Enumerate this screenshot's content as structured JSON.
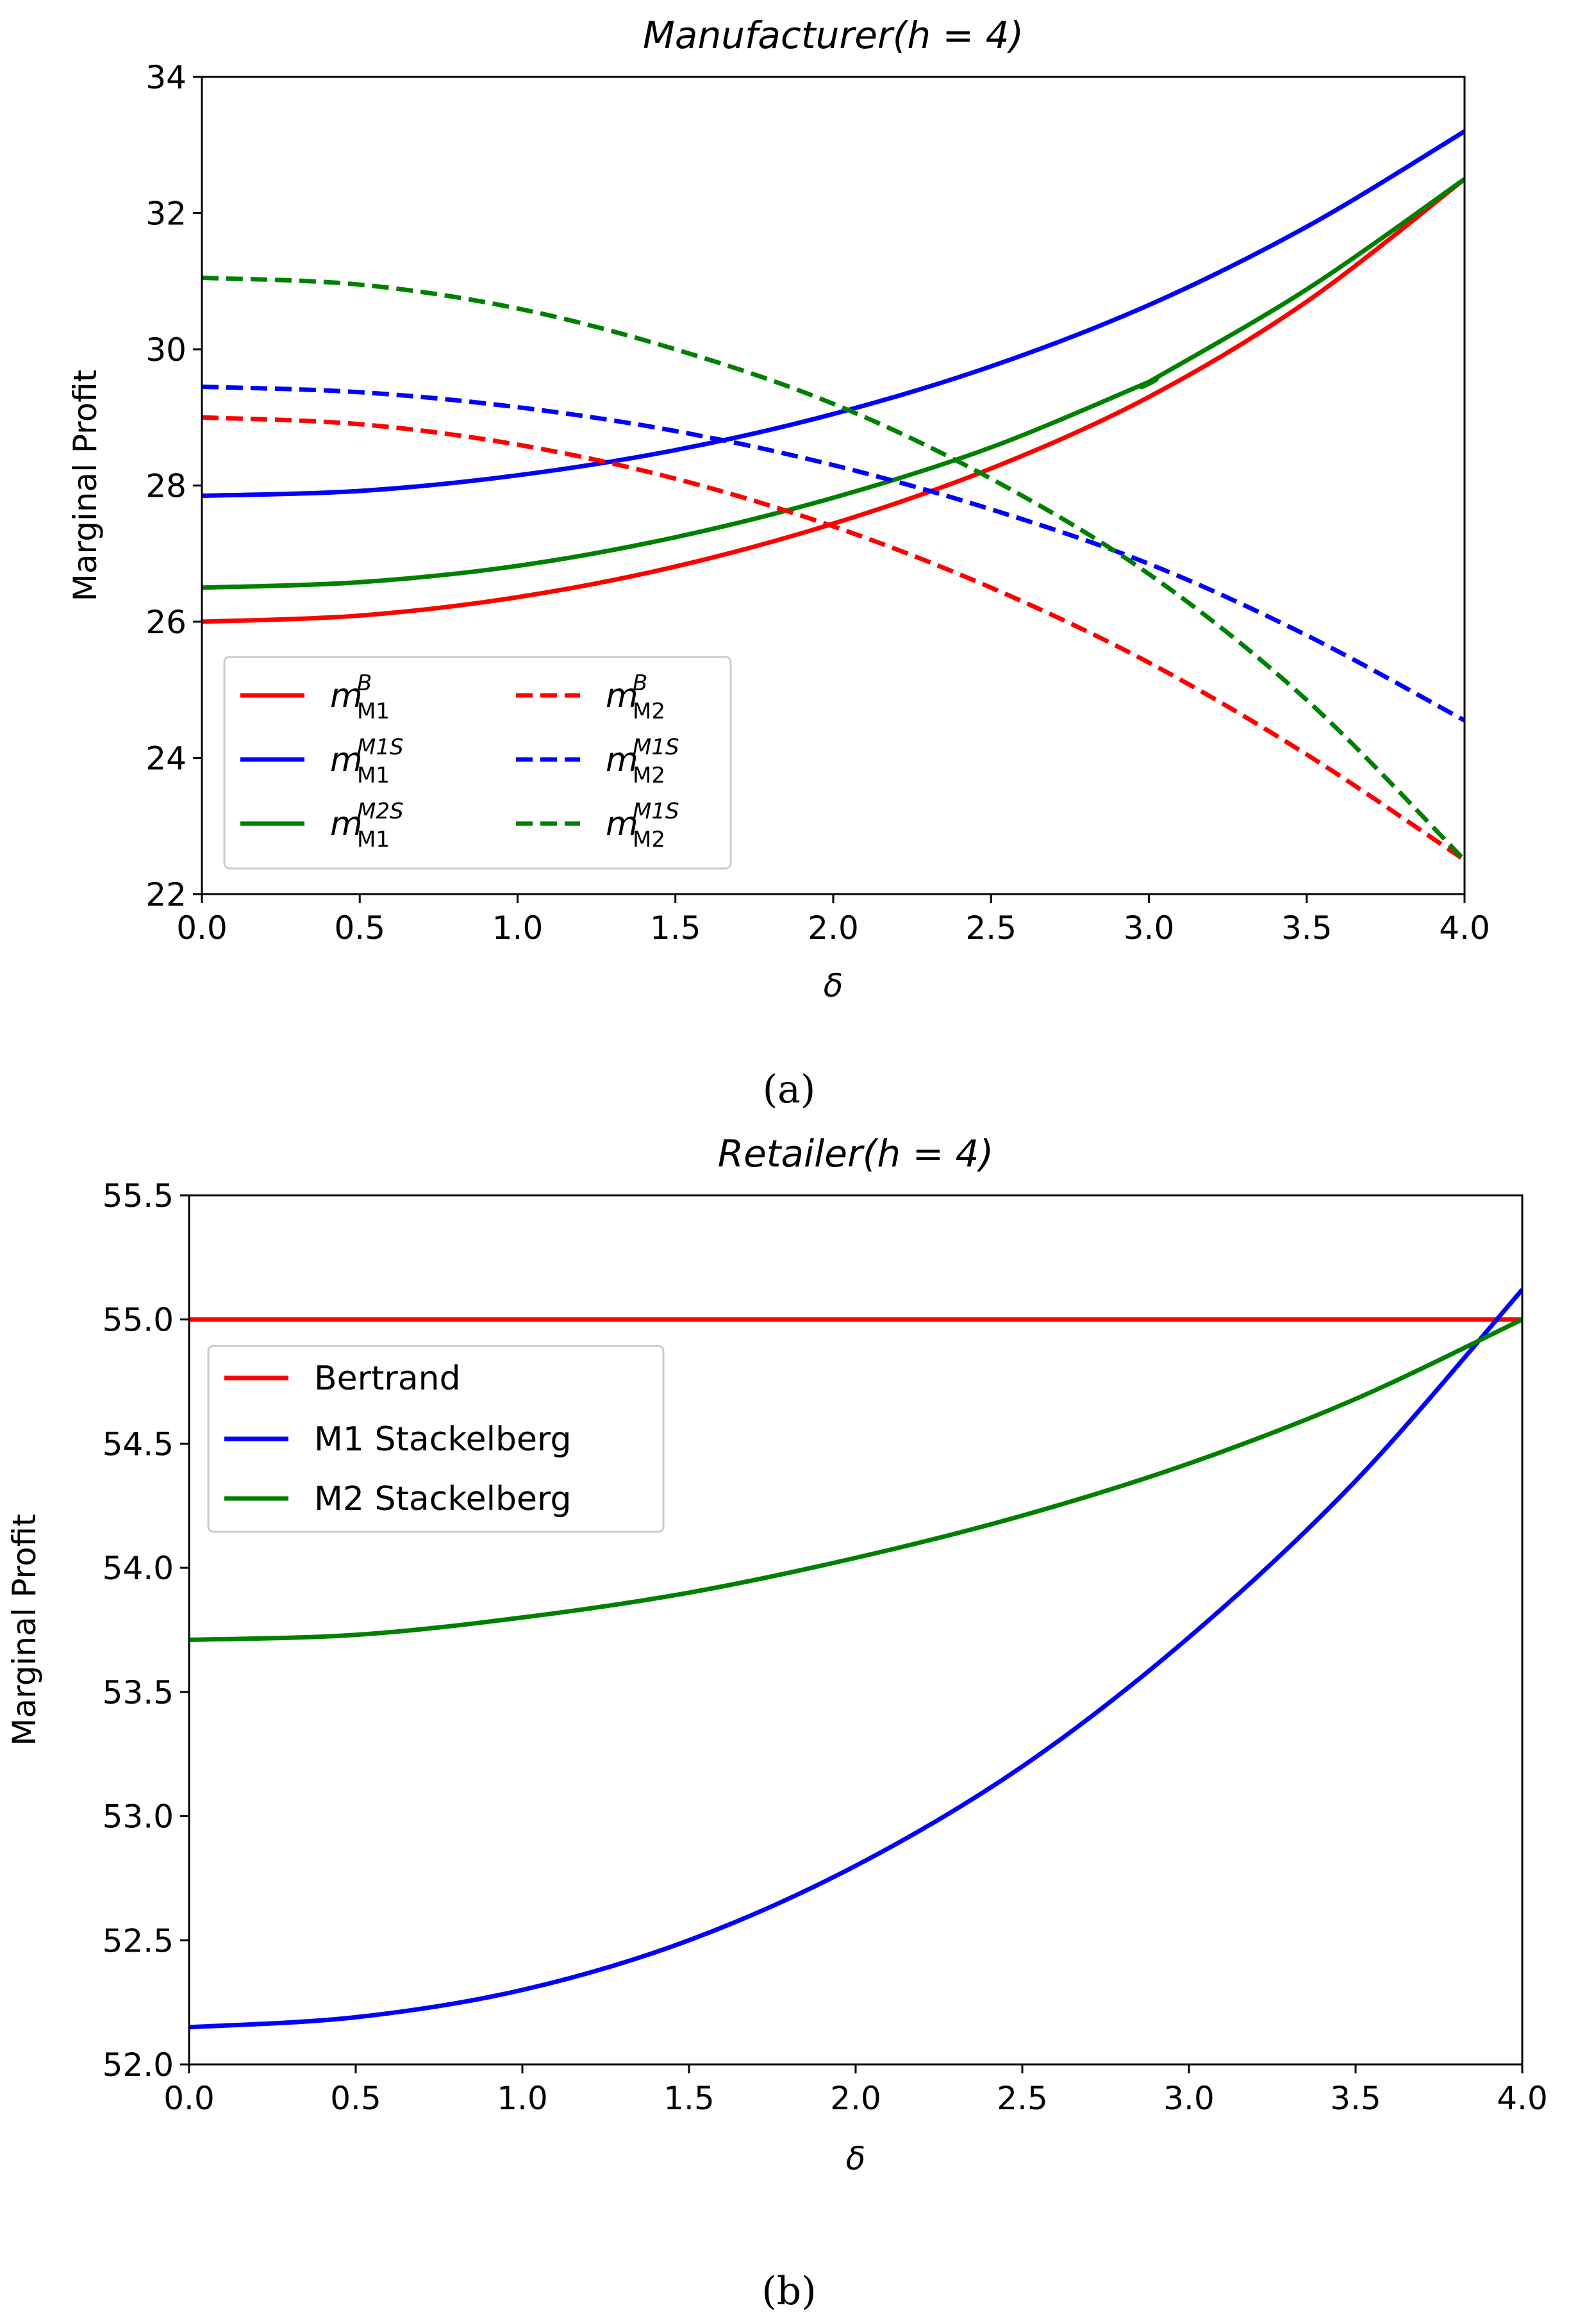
{
  "panel_labels": [
    "(a)",
    "(b)"
  ],
  "chart_data": [
    {
      "type": "line",
      "title": "Manufacturer(h = 4)",
      "xlabel": "δ",
      "ylabel": "Marginal Profit",
      "xlim": [
        0,
        4
      ],
      "ylim": [
        22,
        34
      ],
      "xticks": [
        "0.0",
        "0.5",
        "1.0",
        "1.5",
        "2.0",
        "2.5",
        "3.0",
        "3.5",
        "4.0"
      ],
      "yticks": [
        "22",
        "24",
        "26",
        "28",
        "30",
        "32",
        "34"
      ],
      "legend_position": "lower-left",
      "legend_columns": 2,
      "series": [
        {
          "name": "m_M1^B",
          "base": "m",
          "sub": "M1",
          "sup": "B",
          "color": "#ff0000",
          "dash": "solid",
          "points": [
            [
              0,
              26.0
            ],
            [
              0.5,
              26.09
            ],
            [
              1,
              26.36
            ],
            [
              1.5,
              26.81
            ],
            [
              2,
              27.44
            ],
            [
              2.5,
              28.25
            ],
            [
              3,
              29.3
            ],
            [
              3.5,
              30.7
            ],
            [
              4,
              32.5
            ]
          ]
        },
        {
          "name": "m_M1^M1S",
          "base": "m",
          "sub": "M1",
          "sup": "M1S",
          "color": "#0000ff",
          "dash": "solid",
          "points": [
            [
              0,
              27.85
            ],
            [
              0.5,
              27.92
            ],
            [
              1,
              28.15
            ],
            [
              1.5,
              28.52
            ],
            [
              2,
              29.05
            ],
            [
              2.5,
              29.75
            ],
            [
              3,
              30.65
            ],
            [
              3.5,
              31.8
            ],
            [
              4,
              33.2
            ]
          ]
        },
        {
          "name": "m_M1^M2S",
          "base": "m",
          "sub": "M1",
          "sup": "M2S",
          "color": "#008000",
          "dash": "solid",
          "points": [
            [
              0,
              26.5
            ],
            [
              0.5,
              26.58
            ],
            [
              1,
              26.82
            ],
            [
              1.5,
              27.24
            ],
            [
              2,
              27.82
            ],
            [
              2.5,
              28.56
            ],
            [
              3,
              29.52
            ],
            [
              3,
              29.52
            ],
            [
              3.5,
              30.88
            ],
            [
              4,
              32.5
            ]
          ]
        },
        {
          "name": "m_M2^B",
          "base": "m",
          "sub": "M2",
          "sup": "B",
          "color": "#ff0000",
          "dash": "dashed",
          "points": [
            [
              0,
              29.0
            ],
            [
              0.5,
              28.9
            ],
            [
              1,
              28.6
            ],
            [
              1.5,
              28.1
            ],
            [
              2,
              27.4
            ],
            [
              2.5,
              26.5
            ],
            [
              3,
              25.4
            ],
            [
              3.5,
              24.05
            ],
            [
              4,
              22.5
            ]
          ]
        },
        {
          "name": "m_M2^M1S",
          "base": "m",
          "sub": "M2",
          "sup": "M1S",
          "color": "#0000ff",
          "dash": "dashed",
          "points": [
            [
              0,
              29.45
            ],
            [
              0.5,
              29.37
            ],
            [
              1,
              29.15
            ],
            [
              1.5,
              28.8
            ],
            [
              2,
              28.3
            ],
            [
              2.5,
              27.65
            ],
            [
              3,
              26.85
            ],
            [
              3.5,
              25.8
            ],
            [
              4,
              24.55
            ]
          ]
        },
        {
          "name": "m_M2^M1S",
          "base": "m",
          "sub": "M2",
          "sup": "M1S",
          "color": "#008000",
          "dash": "dashed",
          "points": [
            [
              0,
              31.05
            ],
            [
              0.5,
              30.95
            ],
            [
              1,
              30.6
            ],
            [
              1.5,
              30.0
            ],
            [
              2,
              29.2
            ],
            [
              2.5,
              28.1
            ],
            [
              3,
              26.7
            ],
            [
              3.5,
              24.85
            ],
            [
              4,
              22.5
            ]
          ]
        }
      ]
    },
    {
      "type": "line",
      "title": "Retailer(h = 4)",
      "xlabel": "δ",
      "ylabel": "Marginal Profit",
      "xlim": [
        0,
        4
      ],
      "ylim": [
        52.0,
        55.5
      ],
      "xticks": [
        "0.0",
        "0.5",
        "1.0",
        "1.5",
        "2.0",
        "2.5",
        "3.0",
        "3.5",
        "4.0"
      ],
      "yticks": [
        "52.0",
        "52.5",
        "53.0",
        "53.5",
        "54.0",
        "54.5",
        "55.0",
        "55.5"
      ],
      "legend_position": "upper-left",
      "legend_columns": 1,
      "series": [
        {
          "name": "Bertrand",
          "color": "#ff0000",
          "dash": "solid",
          "points": [
            [
              0,
              55.0
            ],
            [
              4,
              55.0
            ]
          ]
        },
        {
          "name": "M1 Stackelberg",
          "color": "#0000ff",
          "dash": "solid",
          "points": [
            [
              0,
              52.15
            ],
            [
              0.5,
              52.19
            ],
            [
              1,
              52.3
            ],
            [
              1.5,
              52.5
            ],
            [
              2,
              52.8
            ],
            [
              2.5,
              53.2
            ],
            [
              3,
              53.72
            ],
            [
              3.5,
              54.35
            ],
            [
              4,
              55.12
            ]
          ]
        },
        {
          "name": "M2 Stackelberg",
          "color": "#008000",
          "dash": "solid",
          "points": [
            [
              0,
              53.71
            ],
            [
              0.5,
              53.73
            ],
            [
              1,
              53.8
            ],
            [
              1.5,
              53.9
            ],
            [
              2,
              54.04
            ],
            [
              2.5,
              54.21
            ],
            [
              3,
              54.42
            ],
            [
              3.5,
              54.68
            ],
            [
              4,
              55.0
            ]
          ]
        }
      ]
    }
  ]
}
